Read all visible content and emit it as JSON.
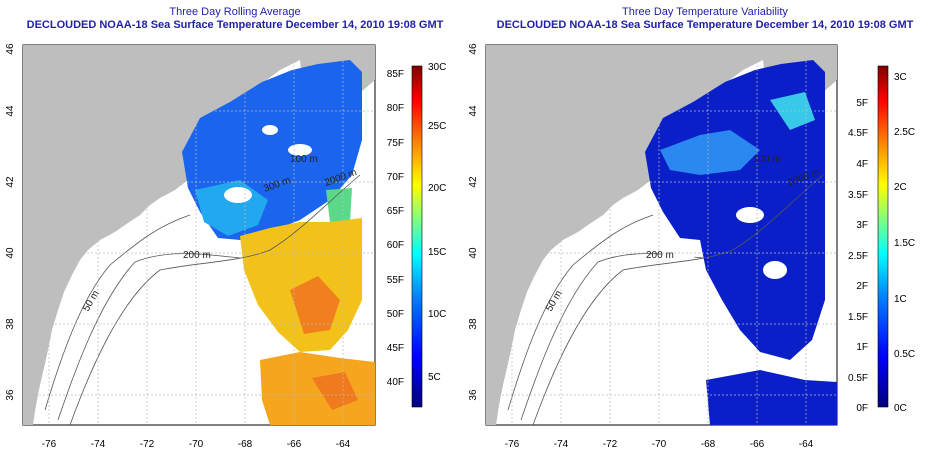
{
  "left_panel": {
    "title_line1": "Three Day Rolling Average",
    "title_line2": "DECLOUDED NOAA-18 Sea Surface Temperature December 14, 2010 19:08 GMT",
    "x_ticks": [
      "-76",
      "-74",
      "-72",
      "-70",
      "-68",
      "-66",
      "-64"
    ],
    "y_ticks": [
      "36",
      "38",
      "40",
      "42",
      "44",
      "46"
    ],
    "colorbar_f": [
      "40F",
      "45F",
      "50F",
      "55F",
      "60F",
      "65F",
      "70F",
      "75F",
      "80F",
      "85F"
    ],
    "colorbar_c": [
      "5C",
      "10C",
      "15C",
      "20C",
      "25C",
      "30C"
    ],
    "contour_labels": [
      "50 m",
      "200 m",
      "100 m",
      "300 m",
      "2000 m"
    ]
  },
  "right_panel": {
    "title_line1": "Three Day Temperature Variability",
    "title_line2": "DECLOUDED NOAA-18 Sea Surface Temperature December 14, 2010 19:08 GMT",
    "x_ticks": [
      "-76",
      "-74",
      "-72",
      "-70",
      "-68",
      "-66",
      "-64"
    ],
    "y_ticks": [
      "36",
      "38",
      "40",
      "42",
      "44",
      "46"
    ],
    "colorbar_f": [
      "0F",
      "0.5F",
      "1F",
      "1.5F",
      "2F",
      "2.5F",
      "3F",
      "3.5F",
      "4F",
      "4.5F",
      "5F"
    ],
    "colorbar_c": [
      "0C",
      "0.5C",
      "1C",
      "1.5C",
      "2C",
      "2.5C",
      "3C"
    ],
    "contour_labels": [
      "50 m",
      "200 m",
      "100 m",
      "2000 m"
    ]
  },
  "colors": {
    "title": "#1f1fa8",
    "land": "#bebebe",
    "sst_scale": [
      "#00007f",
      "#0000ff",
      "#007fff",
      "#00ffff",
      "#7fff7f",
      "#ffff00",
      "#ff7f00",
      "#ff0000",
      "#7f0000"
    ]
  }
}
